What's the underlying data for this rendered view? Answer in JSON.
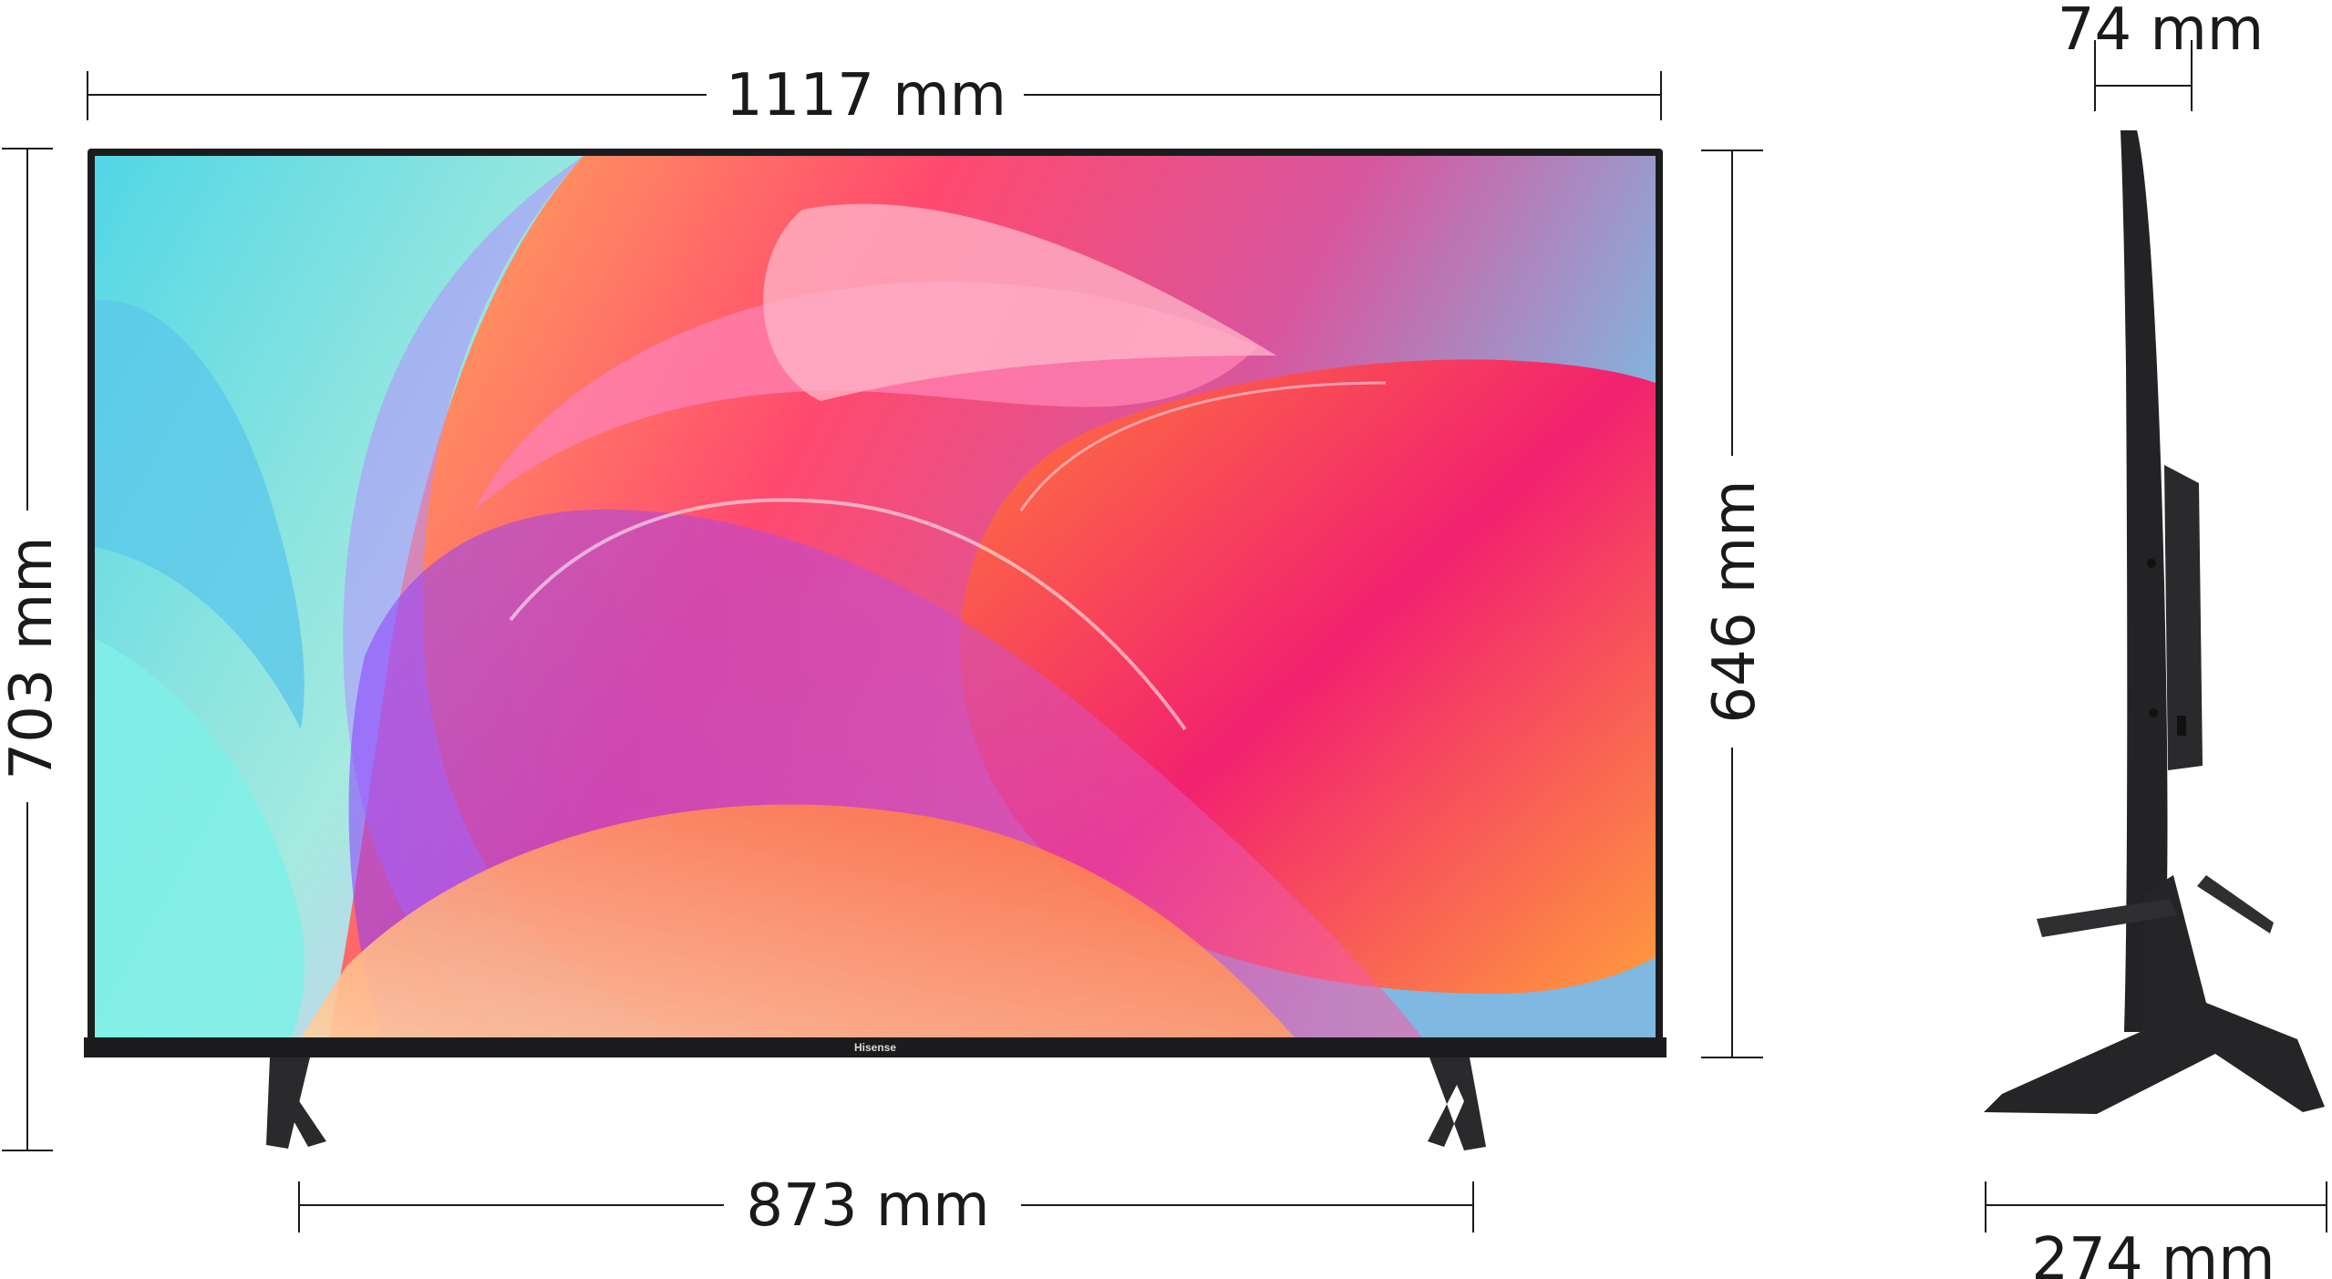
{
  "dimensions": {
    "width": "1117 mm",
    "height_with_stand": "703 mm",
    "height_panel": "646 mm",
    "stand_span": "873 mm",
    "depth_panel": "74 mm",
    "depth_stand": "274 mm"
  },
  "brand": {
    "logo_text": "Hisense"
  },
  "colors": {
    "line": "#1a1a1a",
    "bezel": "#1c1c1e",
    "stand": "#2a2a2c",
    "screen_pink": "#f0307a",
    "screen_orange": "#ff9a4a",
    "screen_cyan": "#6fe3e0",
    "screen_violet": "#8a3cff"
  }
}
